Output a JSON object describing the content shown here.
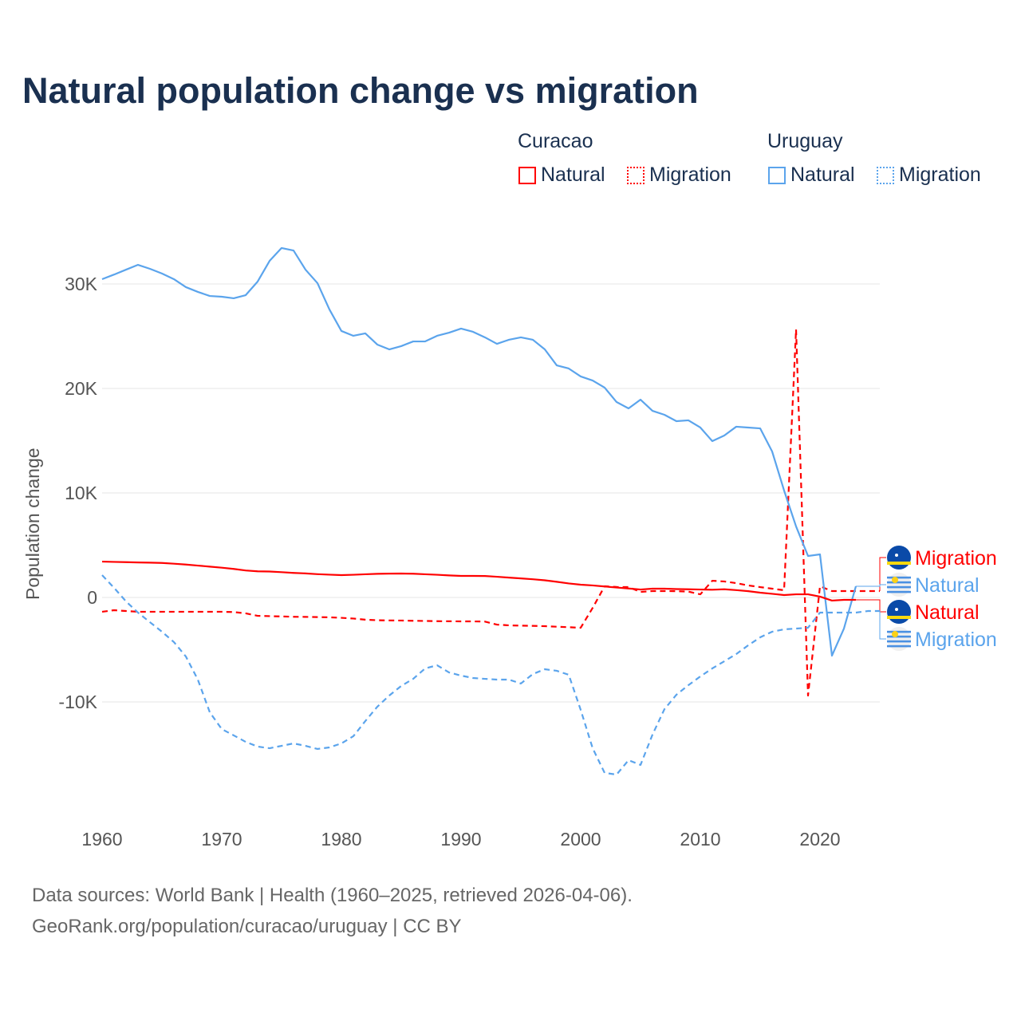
{
  "title": "Natural population change vs migration",
  "legend": {
    "groups": [
      {
        "name": "Curacao",
        "items": [
          {
            "label": "Natural",
            "color": "#ff0000",
            "style": "solid"
          },
          {
            "label": "Migration",
            "color": "#ff0000",
            "style": "dotted"
          }
        ]
      },
      {
        "name": "Uruguay",
        "items": [
          {
            "label": "Natural",
            "color": "#5ba4ec",
            "style": "solid"
          },
          {
            "label": "Migration",
            "color": "#5ba4ec",
            "style": "dotted"
          }
        ]
      }
    ]
  },
  "source_lines": [
    "Data sources: World Bank | Health (1960–2025, retrieved 2026-04-06).",
    "GeoRank.org/population/curacao/uruguay | CC BY"
  ],
  "chart_data": {
    "type": "line",
    "title": "Natural population change vs migration",
    "xlabel": "",
    "ylabel": "Population change",
    "xlim": [
      1960,
      2025
    ],
    "ylim": [
      -20000,
      35000
    ],
    "xticks": [
      1960,
      1970,
      1980,
      1990,
      2000,
      2010,
      2020
    ],
    "xtick_labels": [
      "1960",
      "1970",
      "1980",
      "1990",
      "2000",
      "2010",
      "2020"
    ],
    "yticks": [
      -10000,
      0,
      10000,
      20000,
      30000
    ],
    "ytick_labels": [
      "-10K",
      "0",
      "10K",
      "20K",
      "30K"
    ],
    "grid": true,
    "series": [
      {
        "name": "Uruguay Natural",
        "end_label": "Natural",
        "country": "Uruguay",
        "color": "#5ba4ec",
        "dash": false,
        "x0": 1960,
        "values": [
          30460,
          30900,
          31370,
          31830,
          31450,
          31000,
          30460,
          29700,
          29240,
          28850,
          28780,
          28630,
          28930,
          30230,
          32210,
          33440,
          33200,
          31370,
          30080,
          27560,
          25500,
          25040,
          25270,
          24200,
          23740,
          24050,
          24500,
          24500,
          25040,
          25340,
          25730,
          25420,
          24890,
          24270,
          24660,
          24890,
          24660,
          23740,
          22210,
          21910,
          21150,
          20760,
          20080,
          18700,
          18090,
          18930,
          17860,
          17480,
          16870,
          16950,
          16260,
          14960,
          15500,
          16340,
          16260,
          16180,
          13970,
          10230,
          6800,
          3970,
          4120,
          -5570,
          -2980,
          1070
        ]
      },
      {
        "name": "Uruguay Migration",
        "end_label": "Migration",
        "country": "Uruguay",
        "color": "#5ba4ec",
        "dash": true,
        "x0": 1960,
        "values": [
          2140,
          920,
          -380,
          -1450,
          -2370,
          -3280,
          -4270,
          -5650,
          -7860,
          -10990,
          -12600,
          -13200,
          -13820,
          -14270,
          -14430,
          -14200,
          -13970,
          -14200,
          -14500,
          -14350,
          -13970,
          -13280,
          -11830,
          -10460,
          -9390,
          -8470,
          -7790,
          -6790,
          -6490,
          -7180,
          -7480,
          -7710,
          -7790,
          -7860,
          -7860,
          -8240,
          -7330,
          -6870,
          -7020,
          -7400,
          -10760,
          -14430,
          -16790,
          -16950,
          -15570,
          -16030,
          -13130,
          -10690,
          -9310,
          -8400,
          -7560,
          -6790,
          -6110,
          -5420,
          -4580,
          -3820,
          -3280,
          -3050,
          -2980,
          -2900,
          -1450,
          -1450,
          -1450,
          -1450,
          -1300,
          -1300
        ]
      },
      {
        "name": "Curacao Natural",
        "end_label": "Natural",
        "country": "Curacao",
        "color": "#ff0000",
        "dash": false,
        "x0": 1960,
        "values": [
          3430,
          3400,
          3380,
          3350,
          3330,
          3300,
          3230,
          3150,
          3050,
          2950,
          2850,
          2730,
          2580,
          2500,
          2480,
          2420,
          2350,
          2300,
          2230,
          2180,
          2140,
          2170,
          2220,
          2260,
          2280,
          2290,
          2270,
          2220,
          2170,
          2110,
          2060,
          2060,
          2050,
          1980,
          1900,
          1820,
          1740,
          1640,
          1500,
          1340,
          1220,
          1150,
          1050,
          950,
          860,
          760,
          840,
          840,
          800,
          780,
          760,
          740,
          780,
          700,
          600,
          460,
          350,
          230,
          300,
          300,
          80,
          -300,
          -230,
          -230
        ]
      },
      {
        "name": "Curacao Migration",
        "end_label": "Migration",
        "country": "Curacao",
        "color": "#ff0000",
        "dash": true,
        "x0": 1960,
        "values": [
          -1370,
          -1220,
          -1300,
          -1370,
          -1370,
          -1370,
          -1370,
          -1370,
          -1370,
          -1370,
          -1370,
          -1400,
          -1520,
          -1760,
          -1790,
          -1820,
          -1850,
          -1860,
          -1880,
          -1900,
          -1950,
          -2020,
          -2130,
          -2180,
          -2200,
          -2210,
          -2230,
          -2250,
          -2270,
          -2280,
          -2290,
          -2290,
          -2310,
          -2600,
          -2670,
          -2700,
          -2720,
          -2750,
          -2800,
          -2850,
          -2900,
          -1000,
          1070,
          1000,
          990,
          530,
          610,
          610,
          600,
          560,
          300,
          1600,
          1530,
          1370,
          1150,
          990,
          840,
          690,
          25650,
          -9390,
          1070,
          610,
          610,
          610,
          610,
          610
        ]
      }
    ]
  }
}
